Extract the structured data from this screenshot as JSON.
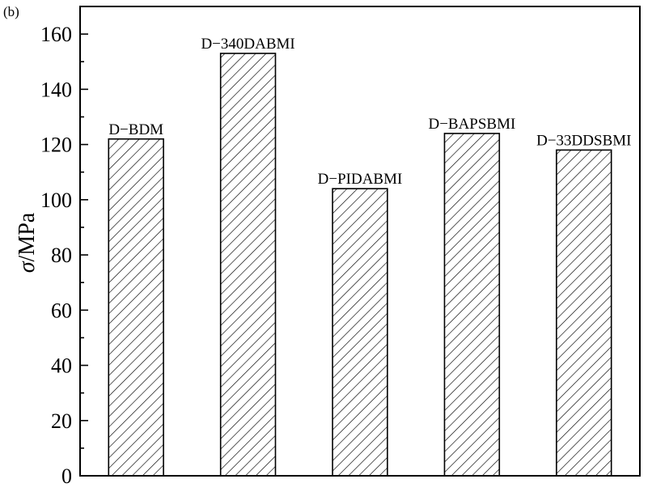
{
  "chart_data": {
    "type": "bar",
    "panel_label": "(b)",
    "ylabel_symbol": "σ",
    "ylabel_unit": "/MPa",
    "categories": [
      "D−BDM",
      "D−340DABMI",
      "D−PIDABMI",
      "D−BAPSBMI",
      "D−33DDSBMI"
    ],
    "values": [
      122,
      153,
      104,
      124,
      118
    ],
    "ylim": [
      0,
      170
    ],
    "yticks": [
      0,
      20,
      40,
      60,
      80,
      100,
      120,
      140,
      160
    ],
    "grid": false,
    "bar_fill": "hatched",
    "bar_color": "#000000"
  }
}
